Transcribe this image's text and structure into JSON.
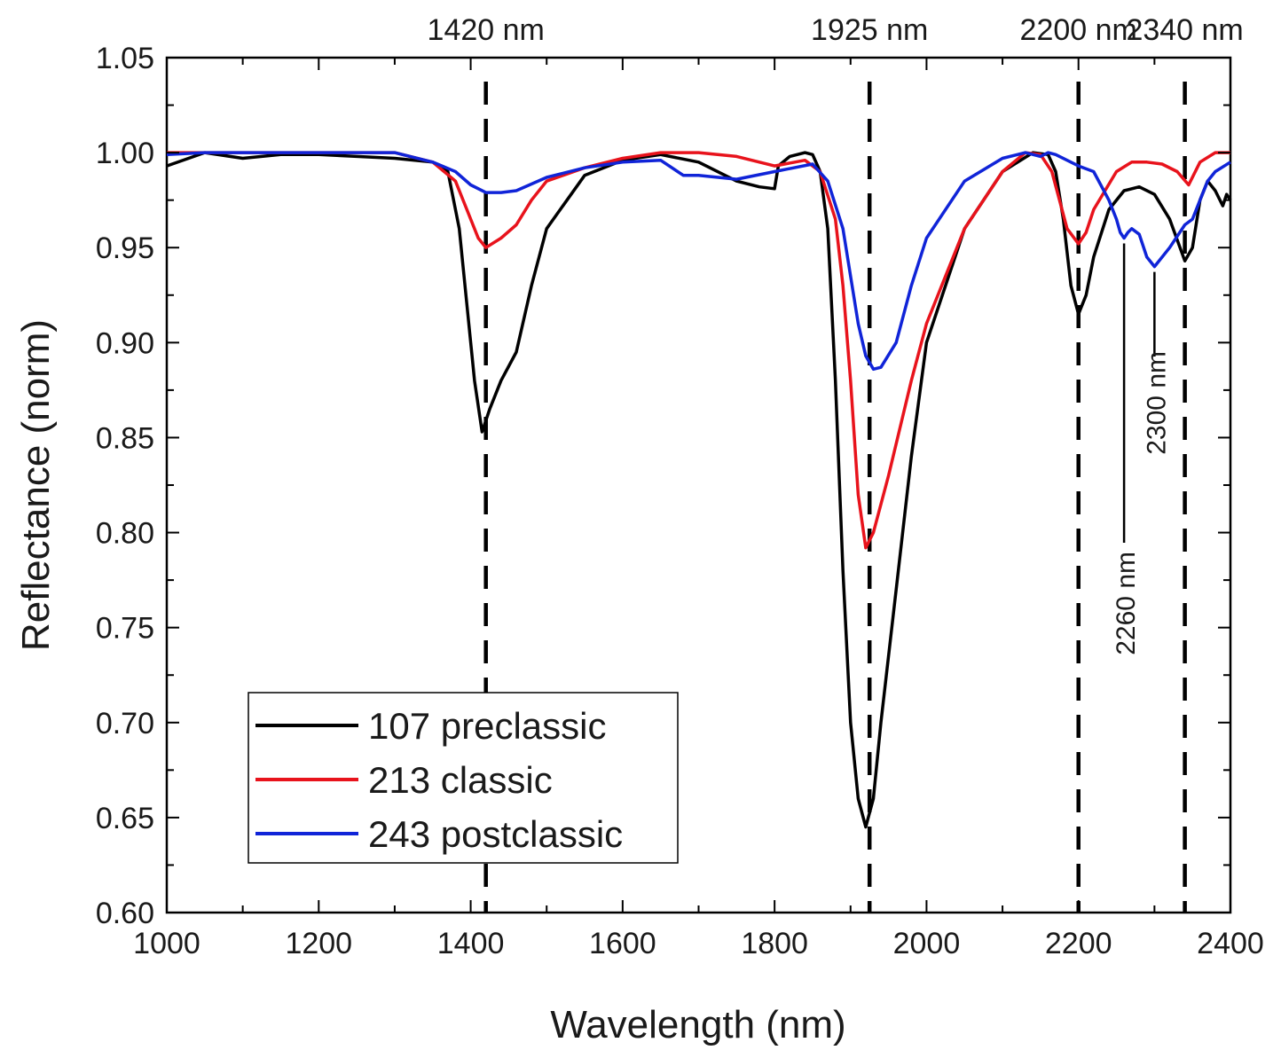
{
  "chart_data": {
    "type": "line",
    "title": "",
    "xlabel": "Wavelength (nm)",
    "ylabel": "Reflectance (norm)",
    "xlim": [
      1000,
      2400
    ],
    "ylim": [
      0.6,
      1.05
    ],
    "xticks": [
      1000,
      1200,
      1400,
      1600,
      1800,
      2000,
      2200,
      2400
    ],
    "xtick_labels": [
      "1000",
      "1200",
      "1400",
      "1600",
      "1800",
      "2000",
      "2200",
      "2400"
    ],
    "yticks": [
      0.6,
      0.65,
      0.7,
      0.75,
      0.8,
      0.85,
      0.9,
      0.95,
      1.0,
      1.05
    ],
    "ytick_labels": [
      "0.60",
      "0.65",
      "0.70",
      "0.75",
      "0.80",
      "0.85",
      "0.90",
      "0.95",
      "1.00",
      "1.05"
    ],
    "grid": false,
    "legend_position": "bottom-left",
    "series": [
      {
        "name": "107 preclassic",
        "color": "#000000",
        "x": [
          1000,
          1050,
          1100,
          1150,
          1200,
          1250,
          1300,
          1350,
          1370,
          1385,
          1395,
          1405,
          1415,
          1425,
          1440,
          1460,
          1480,
          1500,
          1550,
          1600,
          1650,
          1700,
          1750,
          1780,
          1800,
          1805,
          1820,
          1840,
          1850,
          1860,
          1870,
          1880,
          1890,
          1900,
          1910,
          1920,
          1930,
          1940,
          1960,
          1980,
          2000,
          2050,
          2100,
          2140,
          2160,
          2170,
          2180,
          2190,
          2200,
          2210,
          2220,
          2240,
          2260,
          2280,
          2300,
          2320,
          2340,
          2350,
          2360,
          2370,
          2380,
          2390,
          2395,
          2400
        ],
        "values": [
          0.993,
          1.0,
          0.997,
          0.999,
          0.999,
          0.998,
          0.997,
          0.995,
          0.99,
          0.96,
          0.92,
          0.88,
          0.853,
          0.865,
          0.88,
          0.895,
          0.93,
          0.96,
          0.988,
          0.996,
          0.999,
          0.995,
          0.985,
          0.982,
          0.981,
          0.993,
          0.998,
          1.0,
          0.999,
          0.99,
          0.96,
          0.88,
          0.78,
          0.7,
          0.66,
          0.645,
          0.66,
          0.7,
          0.77,
          0.84,
          0.9,
          0.96,
          0.99,
          1.0,
          0.999,
          0.99,
          0.965,
          0.93,
          0.915,
          0.925,
          0.945,
          0.97,
          0.98,
          0.982,
          0.978,
          0.965,
          0.943,
          0.95,
          0.975,
          0.985,
          0.98,
          0.972,
          0.978,
          0.975
        ]
      },
      {
        "name": "213 classic",
        "color": "#e8131c",
        "x": [
          1000,
          1100,
          1200,
          1300,
          1350,
          1380,
          1395,
          1410,
          1420,
          1440,
          1460,
          1480,
          1500,
          1550,
          1600,
          1650,
          1700,
          1750,
          1800,
          1840,
          1860,
          1880,
          1890,
          1900,
          1910,
          1920,
          1930,
          1950,
          1980,
          2000,
          2050,
          2100,
          2130,
          2150,
          2165,
          2175,
          2185,
          2200,
          2210,
          2220,
          2250,
          2270,
          2290,
          2310,
          2330,
          2345,
          2360,
          2380,
          2400
        ],
        "values": [
          1.0,
          1.0,
          1.0,
          1.0,
          0.995,
          0.985,
          0.97,
          0.955,
          0.95,
          0.955,
          0.962,
          0.975,
          0.985,
          0.992,
          0.997,
          1.0,
          1.0,
          0.998,
          0.993,
          0.996,
          0.99,
          0.965,
          0.93,
          0.88,
          0.82,
          0.792,
          0.8,
          0.83,
          0.88,
          0.91,
          0.96,
          0.99,
          1.0,
          0.999,
          0.99,
          0.975,
          0.96,
          0.952,
          0.958,
          0.97,
          0.99,
          0.995,
          0.995,
          0.994,
          0.99,
          0.983,
          0.995,
          1.0,
          1.0
        ]
      },
      {
        "name": "243 postclassic",
        "color": "#1024d8",
        "x": [
          1000,
          1050,
          1100,
          1200,
          1300,
          1350,
          1380,
          1400,
          1420,
          1440,
          1460,
          1500,
          1550,
          1600,
          1650,
          1680,
          1700,
          1750,
          1800,
          1850,
          1870,
          1890,
          1900,
          1910,
          1920,
          1930,
          1940,
          1960,
          1980,
          2000,
          2050,
          2100,
          2130,
          2150,
          2160,
          2170,
          2200,
          2220,
          2240,
          2250,
          2255,
          2260,
          2265,
          2270,
          2280,
          2290,
          2300,
          2320,
          2340,
          2350,
          2360,
          2370,
          2380,
          2400
        ],
        "values": [
          0.999,
          1.0,
          1.0,
          1.0,
          1.0,
          0.995,
          0.99,
          0.983,
          0.979,
          0.979,
          0.98,
          0.987,
          0.992,
          0.995,
          0.996,
          0.988,
          0.988,
          0.986,
          0.99,
          0.994,
          0.985,
          0.96,
          0.935,
          0.91,
          0.893,
          0.886,
          0.887,
          0.9,
          0.93,
          0.955,
          0.985,
          0.997,
          1.0,
          0.998,
          1.0,
          0.999,
          0.993,
          0.99,
          0.975,
          0.965,
          0.958,
          0.955,
          0.958,
          0.96,
          0.957,
          0.945,
          0.94,
          0.95,
          0.962,
          0.965,
          0.975,
          0.985,
          0.99,
          0.995
        ]
      }
    ],
    "reference_lines": [
      {
        "x": 1420,
        "label": "1420 nm"
      },
      {
        "x": 1925,
        "label": "1925 nm"
      },
      {
        "x": 2200,
        "label": "2200 nm"
      },
      {
        "x": 2340,
        "label": "2340 nm"
      }
    ],
    "annotations": [
      {
        "x": 2260,
        "y": 0.955,
        "label": "2260 nm"
      },
      {
        "x": 2300,
        "y": 0.94,
        "label": "2300 nm"
      }
    ]
  }
}
